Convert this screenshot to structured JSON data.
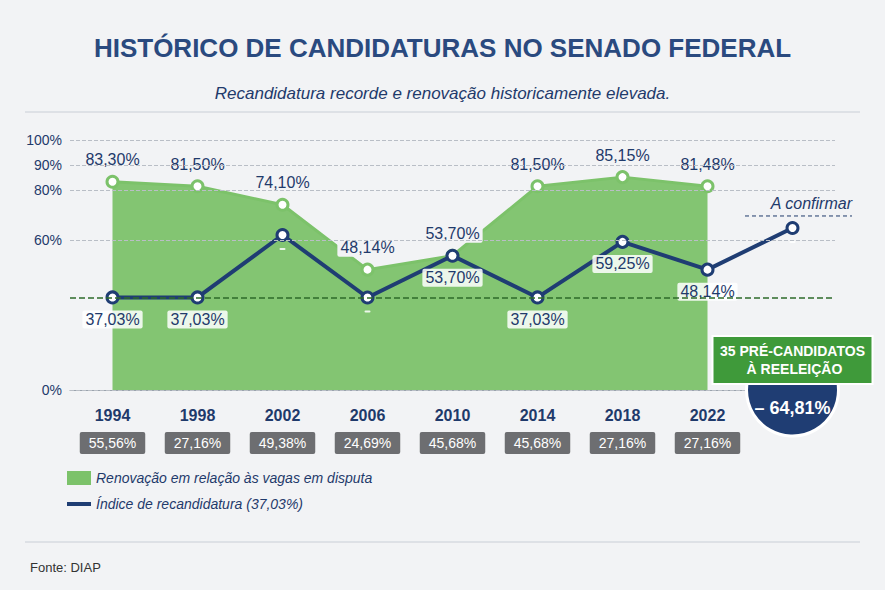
{
  "chart_data": {
    "type": "line",
    "title": "HISTÓRICO DE CANDIDATURAS NO SENADO FEDERAL",
    "subtitle": "Recandidatura recorde e renovação historicamente elevada.",
    "source": "Fonte: DIAP",
    "categories": [
      "1994",
      "1998",
      "2002",
      "2006",
      "2010",
      "2014",
      "2018",
      "2022",
      null
    ],
    "bottom_labels": [
      "55,56%",
      "27,16%",
      "49,38%",
      "24,69%",
      "45,68%",
      "45,68%",
      "27,16%",
      "27,16%",
      null
    ],
    "series": [
      {
        "name": "Renovação em relação às vagas em disputa",
        "type": "area",
        "color": "#7cc26a",
        "marker": "circle",
        "line_style": "solid",
        "values": [
          83.3,
          81.5,
          74.1,
          48.14,
          53.7,
          81.5,
          85.15,
          81.48,
          null
        ],
        "value_labels": [
          "83,30%",
          "81,50%",
          "74,10%",
          "48,14%",
          "53,70%",
          "81,50%",
          "85,15%",
          "81,48%",
          null
        ]
      },
      {
        "name": "Índice de recandidatura (37,03%)",
        "type": "line",
        "color": "#1f3d73",
        "marker": "circle",
        "line_style": "solid",
        "values": [
          37.03,
          37.03,
          62,
          37,
          53.7,
          37.03,
          59.25,
          48.14,
          64.81
        ],
        "value_labels": [
          "37,03%",
          "37,03%",
          null,
          null,
          "53,70%",
          "37,03%",
          "59,25%",
          "48,14%",
          null
        ],
        "reference_line": 37.03
      }
    ],
    "annotations": {
      "projection_label": "A confirmar",
      "badge_title": "35 PRÉ-CANDIDATOS À REELEIÇÃO",
      "badge_value": "– 64,81%"
    },
    "ylim": [
      0,
      100
    ],
    "yticks": [
      {
        "value": 0,
        "label": "0%"
      },
      {
        "value": 60,
        "label": "60%"
      },
      {
        "value": 80,
        "label": "80%"
      },
      {
        "value": 90,
        "label": "90%"
      },
      {
        "value": 100,
        "label": "100%"
      }
    ],
    "grid": true,
    "legend": "bottom-left",
    "data_labels": true
  }
}
